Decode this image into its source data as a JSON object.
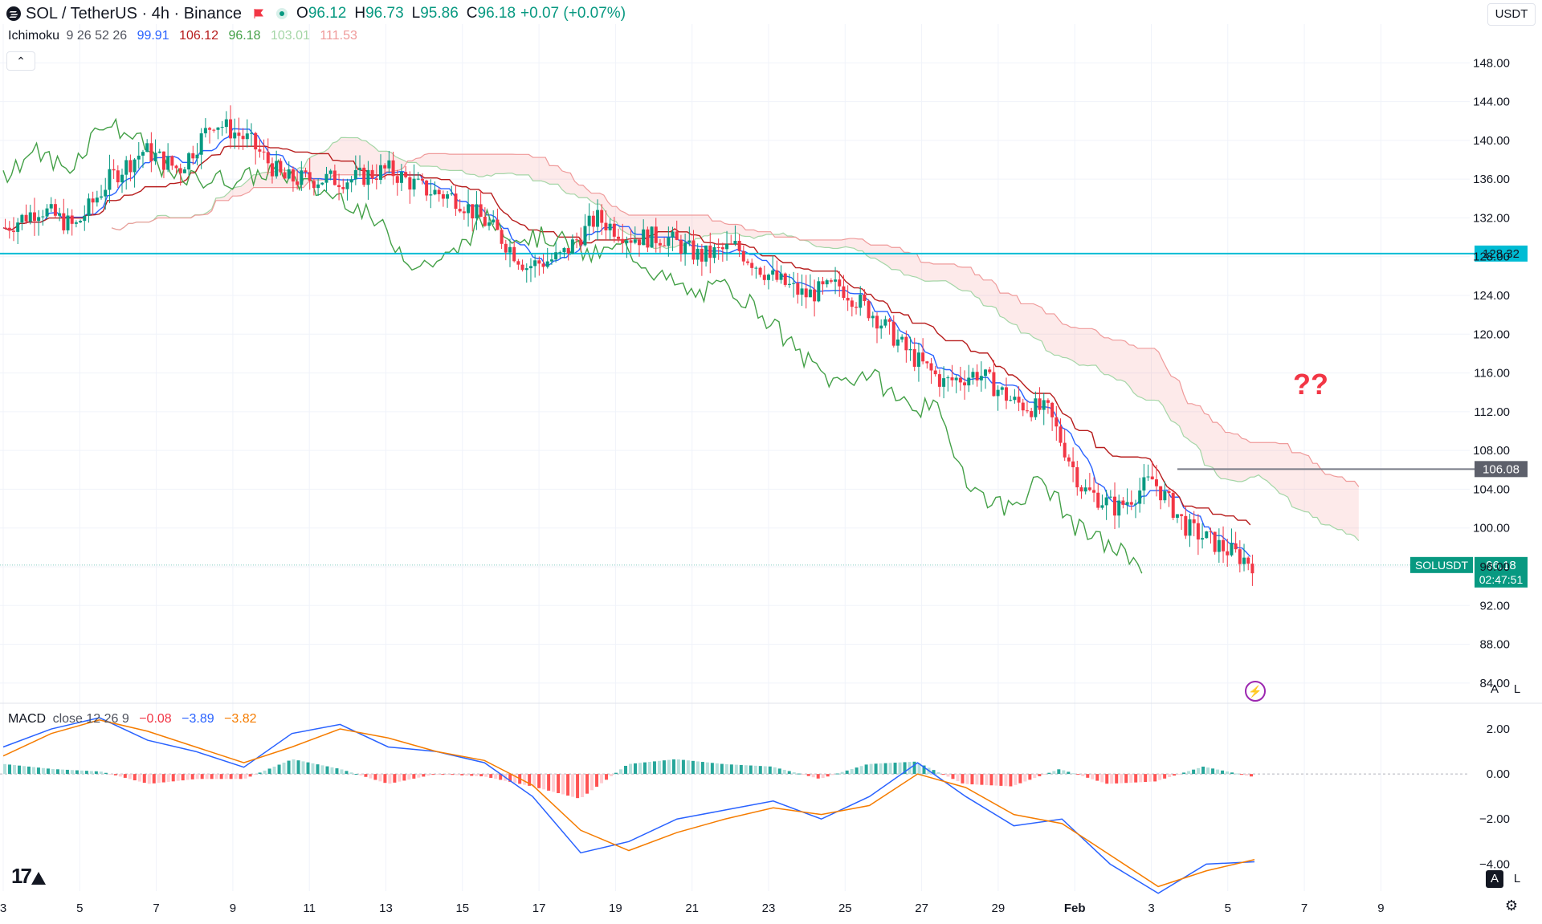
{
  "header": {
    "symbol": "SOL / TetherUS · 4h · Binance",
    "o_label": "O",
    "o": "96.12",
    "h_label": "H",
    "h": "96.73",
    "l_label": "L",
    "l": "95.86",
    "c_label": "C",
    "c": "96.18",
    "change": "+0.07 (+0.07%)"
  },
  "ichimoku": {
    "label": "Ichimoku",
    "params": "9 26 52 26",
    "values": [
      {
        "v": "99.91",
        "color": "#2962ff"
      },
      {
        "v": "106.12",
        "color": "#b71c1c"
      },
      {
        "v": "96.18",
        "color": "#43a047"
      },
      {
        "v": "103.01",
        "color": "#a5d6a7"
      },
      {
        "v": "111.53",
        "color": "#ef9a9a"
      }
    ]
  },
  "macd": {
    "label": "MACD",
    "params": "close 12 26 9",
    "values": [
      {
        "v": "−0.08",
        "color": "#f23645"
      },
      {
        "v": "−3.89",
        "color": "#2962ff"
      },
      {
        "v": "−3.82",
        "color": "#f57c00"
      }
    ]
  },
  "currency": "USDT",
  "annotation": "??",
  "buttons": {
    "auto": "A",
    "log": "L"
  },
  "colors": {
    "up": "#089981",
    "down": "#f23645",
    "tenkan": "#2962ff",
    "kijun": "#b71c1c",
    "chikou": "#43a047",
    "spanA": "#a5d6a7",
    "spanB": "#ef9a9a",
    "level": "#00bcd4",
    "macd": "#2962ff",
    "signal": "#f57c00"
  },
  "chart_data": {
    "type": "candlestick",
    "price_axis": {
      "ticks": [
        "148.00",
        "144.00",
        "140.00",
        "136.00",
        "132.00",
        "128.00",
        "124.00",
        "120.00",
        "116.00",
        "112.00",
        "108.00",
        "104.00",
        "100.00",
        "96.00",
        "92.00",
        "88.00",
        "84.00"
      ],
      "range": [
        82,
        152
      ]
    },
    "x_axis": {
      "ticks": [
        "3",
        "5",
        "7",
        "9",
        "11",
        "13",
        "15",
        "17",
        "19",
        "21",
        "23",
        "25",
        "27",
        "29",
        "Feb",
        "3",
        "5",
        "7",
        "9"
      ]
    },
    "price_labels": [
      {
        "text": "128.32",
        "value": 128.32,
        "style": "horizontal-line-cyan"
      },
      {
        "text": "106.08",
        "value": 106.08,
        "style": "horizontal-line-gray"
      },
      {
        "symbol": "SOLUSDT",
        "text": "96.18",
        "countdown": "02:47:51",
        "value": 96.18,
        "style": "last-price"
      }
    ],
    "ohlc_path": [
      [
        0,
        131
      ],
      [
        10,
        133
      ],
      [
        20,
        131
      ],
      [
        30,
        136
      ],
      [
        40,
        139
      ],
      [
        50,
        137
      ],
      [
        60,
        142
      ],
      [
        70,
        140
      ],
      [
        80,
        136
      ],
      [
        90,
        136
      ],
      [
        100,
        136
      ],
      [
        110,
        137
      ],
      [
        120,
        135
      ],
      [
        130,
        134
      ],
      [
        140,
        131
      ],
      [
        150,
        127
      ],
      [
        160,
        128
      ],
      [
        170,
        132
      ],
      [
        180,
        130
      ],
      [
        190,
        130
      ],
      [
        200,
        128
      ],
      [
        210,
        129
      ],
      [
        220,
        126
      ],
      [
        230,
        124
      ],
      [
        240,
        125
      ],
      [
        250,
        122
      ],
      [
        260,
        118
      ],
      [
        270,
        115
      ],
      [
        280,
        116
      ],
      [
        290,
        113
      ],
      [
        300,
        112
      ],
      [
        310,
        104
      ],
      [
        320,
        102
      ],
      [
        330,
        105
      ],
      [
        340,
        100
      ],
      [
        350,
        98
      ],
      [
        360,
        96.18
      ]
    ],
    "macd_axis": {
      "ticks": [
        "2.00",
        "0.00",
        "−2.00",
        "−4.00"
      ],
      "range": [
        -5.2,
        3
      ]
    },
    "series": [
      {
        "name": "MACD",
        "values": [
          1.2,
          2.0,
          2.5,
          1.5,
          1.0,
          0.3,
          1.8,
          2.2,
          1.2,
          1.0,
          0.5,
          -1.0,
          -3.5,
          -3.0,
          -2.0,
          -1.6,
          -1.2,
          -2.0,
          -1.0,
          0.5,
          -1.0,
          -2.3,
          -2.0,
          -4.0,
          -5.3,
          -4.0,
          -3.9
        ]
      },
      {
        "name": "Signal",
        "values": [
          0.8,
          1.8,
          2.4,
          1.9,
          1.2,
          0.5,
          1.2,
          2.0,
          1.6,
          1.0,
          0.6,
          -0.5,
          -2.5,
          -3.4,
          -2.6,
          -2.0,
          -1.5,
          -1.8,
          -1.4,
          0.0,
          -0.6,
          -1.8,
          -2.2,
          -3.6,
          -5.0,
          -4.3,
          -3.8
        ]
      }
    ]
  }
}
